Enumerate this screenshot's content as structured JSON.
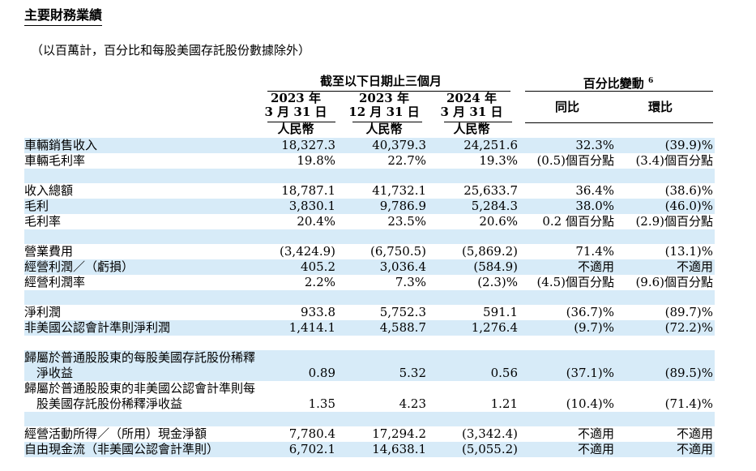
{
  "title": "主要財務業績",
  "subtitle": "（以百萬計，百分比和每股美國存託股份數據除外）",
  "header": {
    "period_group": "截至以下日期止三個月",
    "change_group": "百分比變動",
    "change_note": "6",
    "columns": [
      {
        "year": "2023 年",
        "date": "3 月 31 日",
        "currency": "人民幣"
      },
      {
        "year": "2023 年",
        "date": "12 月 31 日",
        "currency": "人民幣"
      },
      {
        "year": "2024 年",
        "date": "3 月 31 日",
        "currency": "人民幣"
      }
    ],
    "yoy": "同比",
    "qoq": "環比"
  },
  "rows": [
    {
      "label": "車輛銷售收入",
      "values": [
        "18,327.3",
        "40,379.3",
        "24,251.6",
        "32.3%",
        "(39.9)%"
      ]
    },
    {
      "label": "車輛毛利率",
      "values": [
        "19.8%",
        "22.7%",
        "19.3%",
        "(0.5)個百分點",
        "(3.4)個百分點"
      ]
    },
    {
      "label": "收入總額",
      "values": [
        "18,787.1",
        "41,732.1",
        "25,633.7",
        "36.4%",
        "(38.6)%"
      ]
    },
    {
      "label": "毛利",
      "values": [
        "3,830.1",
        "9,786.9",
        "5,284.3",
        "38.0%",
        "(46.0)%"
      ]
    },
    {
      "label": "毛利率",
      "values": [
        "20.4%",
        "23.5%",
        "20.6%",
        "0.2 個百分點",
        "(2.9)個百分點"
      ]
    },
    {
      "label": "營業費用",
      "values": [
        "(3,424.9)",
        "(6,750.5)",
        "(5,869.2)",
        "71.4%",
        "(13.1)%"
      ]
    },
    {
      "label": "經營利潤／（虧損）",
      "values": [
        "405.2",
        "3,036.4",
        "(584.9)",
        "不適用",
        "不適用"
      ]
    },
    {
      "label": "經營利潤率",
      "values": [
        "2.2%",
        "7.3%",
        "(2.3)%",
        "(4.5)個百分點",
        "(9.6)個百分點"
      ]
    },
    {
      "label": "淨利潤",
      "values": [
        "933.8",
        "5,752.3",
        "591.1",
        "(36.7)%",
        "(89.7)%"
      ]
    },
    {
      "label": "非美國公認會計準則淨利潤",
      "values": [
        "1,414.1",
        "4,588.7",
        "1,276.4",
        "(9.7)%",
        "(72.2)%"
      ]
    },
    {
      "label": "歸屬於普通股股東的每股美國存託股份稀釋淨收益",
      "label_line1": "歸屬於普通股股東的每股美國存託",
      "label_line2": "份稀釋淨收益",
      "values": [
        "0.89",
        "5.32",
        "0.56",
        "(37.1)%",
        "(89.5)%"
      ]
    },
    {
      "label": "歸屬於普通股股東的非美國公認會計準則每股美國存託股份稀釋淨收益",
      "label_line1": "歸屬於普通股股東的非美國公認會計",
      "label_line2": "準則每股美國存託股份稀釋淨收益",
      "values": [
        "1.35",
        "4.23",
        "1.21",
        "(10.4)%",
        "(71.4)%"
      ]
    },
    {
      "label": "經營活動所得／（所用）現金淨額",
      "values": [
        "7,780.4",
        "17,294.2",
        "(3,342.4)",
        "不適用",
        "不適用"
      ]
    },
    {
      "label": "自由現金流（非美國公認會計準則）",
      "values": [
        "6,702.1",
        "14,638.1",
        "(5,055.2)",
        "不適用",
        "不適用"
      ]
    }
  ],
  "colors": {
    "shade": "#d7ebf8",
    "text": "#000000"
  }
}
